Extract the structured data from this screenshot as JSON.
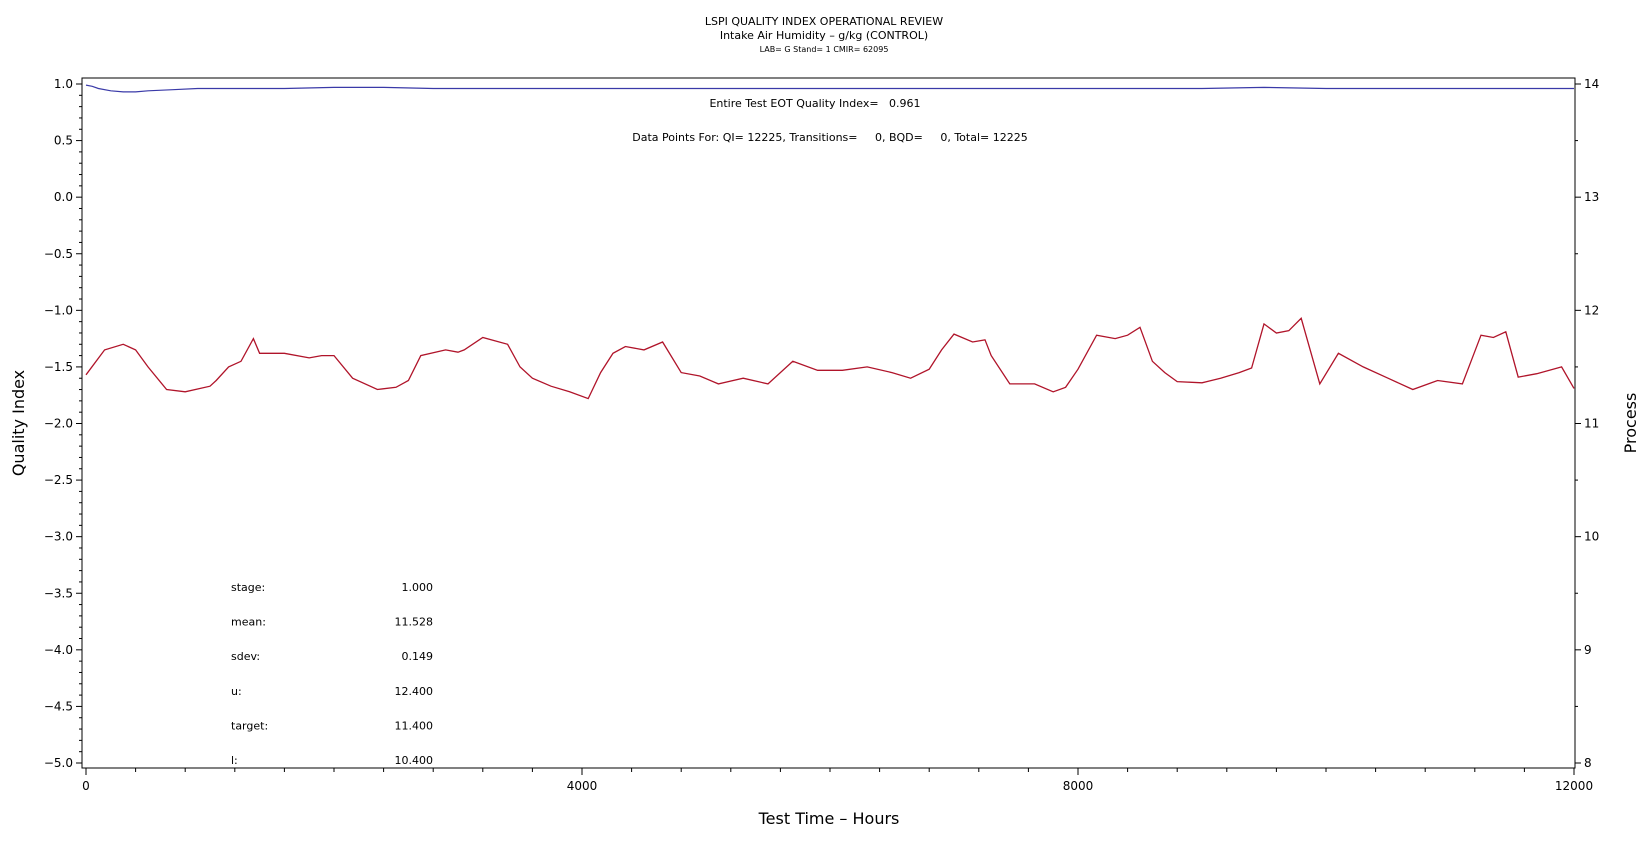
{
  "chart_data": {
    "type": "line",
    "title": "LSPI QUALITY INDEX OPERATIONAL REVIEW",
    "subtitle": "Intake Air Humidity – g/kg (CONTROL)",
    "subtitle2": "LAB= G Stand= 1 CMIR= 62095",
    "xlabel": "Test Time – Hours",
    "ylabel_left": "Quality Index",
    "ylabel_right": "Process",
    "xlim": [
      0,
      12000
    ],
    "ylim_left": [
      -5.0,
      1.0
    ],
    "ylim_right": [
      8,
      14
    ],
    "x_ticks": [
      0,
      4000,
      8000,
      12000
    ],
    "x_tick_labels": [
      "0",
      "4000",
      "8000",
      "12000"
    ],
    "y_left_ticks": [
      1.0,
      0.5,
      0.0,
      -0.5,
      -1.0,
      -1.5,
      -2.0,
      -2.5,
      -3.0,
      -3.5,
      -4.0,
      -4.5,
      -5.0
    ],
    "y_left_tick_labels": [
      "1.0",
      "0.5",
      "0.0",
      "−0.5",
      "−1.0",
      "−1.5",
      "−2.0",
      "−2.5",
      "−3.0",
      "−3.5",
      "−4.0",
      "−4.5",
      "−5.0"
    ],
    "y_right_ticks": [
      14,
      13,
      12,
      11,
      10,
      9,
      8
    ],
    "y_right_tick_labels": [
      "14",
      "13",
      "12",
      "11",
      "10",
      "9",
      "8"
    ],
    "annotations": {
      "quality_index": "Entire Test EOT Quality Index=   0.961",
      "data_points": "Data Points For: QI= 12225, Transitions=     0, BQD=     0, Total= 12225"
    },
    "stats": [
      {
        "label": "stage:",
        "value": "1.000"
      },
      {
        "label": "mean:",
        "value": "11.528"
      },
      {
        "label": "sdev:",
        "value": "0.149"
      },
      {
        "label": "u:",
        "value": "12.400"
      },
      {
        "label": "target:",
        "value": "11.400"
      },
      {
        "label": "l:",
        "value": "10.400"
      }
    ],
    "series": [
      {
        "axis": "left",
        "color": "#3a3aa8",
        "x": [
          0,
          50,
          100,
          200,
          300,
          400,
          500,
          700,
          900,
          1200,
          1600,
          2000,
          2400,
          2800,
          3200,
          4000,
          5000,
          6000,
          7000,
          8000,
          9000,
          9500,
          10000,
          11000,
          12000
        ],
        "y": [
          0.99,
          0.98,
          0.96,
          0.94,
          0.93,
          0.93,
          0.94,
          0.95,
          0.96,
          0.96,
          0.96,
          0.97,
          0.97,
          0.96,
          0.96,
          0.96,
          0.96,
          0.96,
          0.96,
          0.96,
          0.96,
          0.97,
          0.96,
          0.96,
          0.96
        ]
      },
      {
        "axis": "right",
        "color": "#b0142a",
        "x": [
          0,
          150,
          300,
          400,
          500,
          650,
          800,
          1000,
          1050,
          1150,
          1250,
          1350,
          1400,
          1600,
          1800,
          1900,
          2000,
          2150,
          2350,
          2500,
          2600,
          2700,
          2900,
          3000,
          3050,
          3200,
          3400,
          3500,
          3600,
          3750,
          3900,
          4050,
          4150,
          4250,
          4350,
          4500,
          4650,
          4800,
          4950,
          5100,
          5300,
          5500,
          5700,
          5900,
          6100,
          6300,
          6500,
          6650,
          6800,
          6900,
          7000,
          7150,
          7250,
          7300,
          7450,
          7650,
          7800,
          7900,
          8000,
          8150,
          8300,
          8400,
          8500,
          8600,
          8700,
          8800,
          9000,
          9150,
          9300,
          9400,
          9500,
          9600,
          9700,
          9800,
          9950,
          10100,
          10300,
          10500,
          10700,
          10900,
          11100,
          11250,
          11350,
          11450,
          11550,
          11700,
          11900,
          12000
        ],
        "y": [
          11.43,
          11.65,
          11.7,
          11.65,
          11.5,
          11.3,
          11.28,
          11.33,
          11.38,
          11.5,
          11.55,
          11.75,
          11.62,
          11.62,
          11.58,
          11.6,
          11.6,
          11.4,
          11.3,
          11.32,
          11.38,
          11.6,
          11.65,
          11.63,
          11.65,
          11.76,
          11.7,
          11.5,
          11.4,
          11.33,
          11.28,
          11.22,
          11.45,
          11.62,
          11.68,
          11.65,
          11.72,
          11.45,
          11.42,
          11.35,
          11.4,
          11.35,
          11.55,
          11.47,
          11.47,
          11.5,
          11.45,
          11.4,
          11.48,
          11.65,
          11.79,
          11.72,
          11.74,
          11.6,
          11.35,
          11.35,
          11.28,
          11.32,
          11.48,
          11.78,
          11.75,
          11.78,
          11.85,
          11.55,
          11.45,
          11.37,
          11.36,
          11.4,
          11.45,
          11.49,
          11.88,
          11.8,
          11.82,
          11.93,
          11.35,
          11.62,
          11.5,
          11.4,
          11.3,
          11.38,
          11.35,
          11.78,
          11.76,
          11.81,
          11.41,
          11.44,
          11.5,
          11.31
        ]
      }
    ]
  }
}
